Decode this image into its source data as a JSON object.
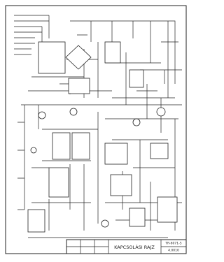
{
  "title_block": {
    "title": "KAPCSOLÁSI RAJZ",
    "drawing_number": "TR-6071-5",
    "sheet": "4.0010"
  }
}
